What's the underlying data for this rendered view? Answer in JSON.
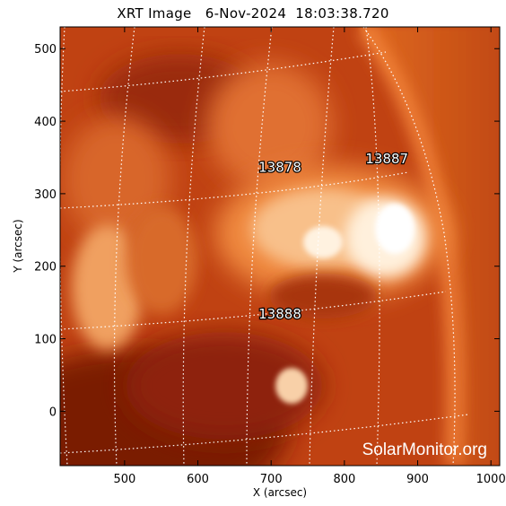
{
  "title": "XRT Image   6-Nov-2024  18:03:38.720",
  "watermark": "SolarMonitor.org",
  "colors": {
    "dark": "#6a1404",
    "mid": "#c84a10",
    "bright": "#f08a40",
    "white": "#fff6e8",
    "grid": "#ffffff"
  },
  "chart_data": {
    "type": "heatmap",
    "title": "XRT Image   6-Nov-2024  18:03:38.720",
    "xlabel": "X (arcsec)",
    "ylabel": "Y (arcsec)",
    "xlim": [
      412,
      1012
    ],
    "ylim": [
      -75,
      530
    ],
    "xticks": [
      500,
      600,
      700,
      800,
      900,
      1000
    ],
    "yticks": [
      0,
      100,
      200,
      300,
      400,
      500
    ],
    "active_regions": [
      {
        "label": "13878",
        "x": 712,
        "y": 330
      },
      {
        "label": "13887",
        "x": 858,
        "y": 342
      },
      {
        "label": "13888",
        "x": 712,
        "y": 128
      }
    ]
  }
}
